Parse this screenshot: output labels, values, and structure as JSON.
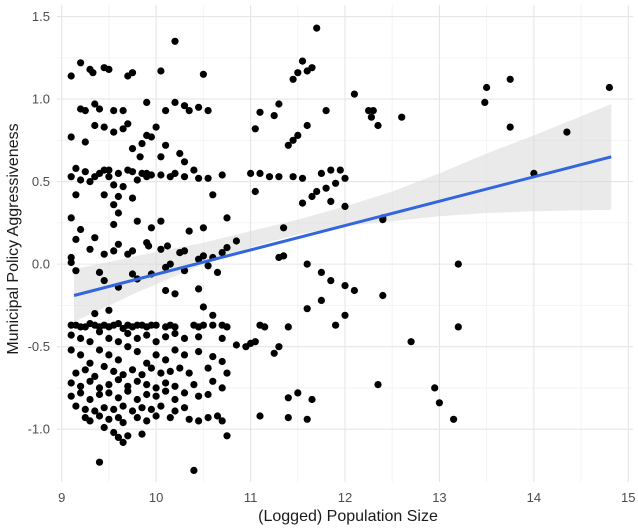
{
  "chart_data": {
    "type": "scatter",
    "title": "",
    "xlabel": "(Logged) Population Size",
    "ylabel": "Municipal Policy Aggressiveness",
    "xlim": [
      8.95,
      15.05
    ],
    "ylim": [
      -1.32,
      1.57
    ],
    "x_ticks": [
      "9",
      "10",
      "11",
      "12",
      "13",
      "14",
      "15"
    ],
    "y_ticks": [
      "-1.0",
      "-0.5",
      "0.0",
      "0.5",
      "1.0",
      "1.5"
    ],
    "grid": true,
    "point_color": "#000000",
    "fit_line": {
      "x": [
        9.13,
        14.82
      ],
      "y": [
        -0.19,
        0.65
      ],
      "color": "#3366dd"
    },
    "confidence_band": {
      "x": [
        9.13,
        9.8,
        10.5,
        11.0,
        11.5,
        12.0,
        12.5,
        13.0,
        13.5,
        14.0,
        14.82
      ],
      "lower": [
        -0.35,
        -0.17,
        0.0,
        0.1,
        0.18,
        0.23,
        0.26,
        0.29,
        0.31,
        0.32,
        0.33
      ],
      "upper": [
        -0.03,
        0.05,
        0.13,
        0.2,
        0.27,
        0.35,
        0.44,
        0.55,
        0.67,
        0.78,
        0.97
      ],
      "color": "#d9d9d9"
    },
    "points": [
      [
        9.1,
        1.14
      ],
      [
        9.2,
        1.22
      ],
      [
        9.3,
        1.18
      ],
      [
        9.33,
        1.16
      ],
      [
        9.45,
        1.19
      ],
      [
        9.5,
        1.18
      ],
      [
        9.7,
        1.14
      ],
      [
        9.75,
        1.16
      ],
      [
        10.2,
        1.35
      ],
      [
        10.05,
        1.17
      ],
      [
        10.5,
        1.15
      ],
      [
        11.7,
        1.43
      ],
      [
        11.55,
        1.23
      ],
      [
        11.5,
        1.16
      ],
      [
        11.6,
        1.17
      ],
      [
        11.65,
        1.19
      ],
      [
        11.45,
        1.12
      ],
      [
        14.8,
        1.07
      ],
      [
        13.5,
        1.07
      ],
      [
        13.75,
        1.12
      ],
      [
        13.48,
        0.98
      ],
      [
        12.1,
        1.03
      ],
      [
        12.25,
        0.93
      ],
      [
        12.3,
        0.93
      ],
      [
        12.28,
        0.89
      ],
      [
        12.6,
        0.89
      ],
      [
        9.2,
        0.94
      ],
      [
        9.25,
        0.93
      ],
      [
        9.35,
        0.97
      ],
      [
        9.4,
        0.94
      ],
      [
        9.55,
        0.93
      ],
      [
        9.65,
        0.93
      ],
      [
        9.7,
        0.85
      ],
      [
        9.9,
        0.98
      ],
      [
        10.0,
        0.83
      ],
      [
        10.1,
        0.93
      ],
      [
        10.2,
        0.98
      ],
      [
        10.3,
        0.96
      ],
      [
        10.35,
        0.93
      ],
      [
        10.45,
        0.95
      ],
      [
        10.55,
        0.93
      ],
      [
        11.3,
        0.97
      ],
      [
        11.1,
        0.92
      ],
      [
        11.25,
        0.9
      ],
      [
        11.6,
        0.84
      ],
      [
        11.05,
        0.82
      ],
      [
        11.4,
        0.72
      ],
      [
        11.45,
        0.75
      ],
      [
        11.5,
        0.78
      ],
      [
        11.8,
        0.93
      ],
      [
        12.35,
        0.84
      ],
      [
        9.1,
        0.77
      ],
      [
        9.25,
        0.74
      ],
      [
        9.35,
        0.84
      ],
      [
        9.45,
        0.83
      ],
      [
        9.55,
        0.8
      ],
      [
        9.65,
        0.82
      ],
      [
        9.75,
        0.7
      ],
      [
        9.85,
        0.73
      ],
      [
        9.9,
        0.78
      ],
      [
        9.95,
        0.77
      ],
      [
        9.83,
        0.65
      ],
      [
        10.05,
        0.65
      ],
      [
        10.1,
        0.72
      ],
      [
        10.25,
        0.67
      ],
      [
        10.3,
        0.62
      ],
      [
        9.15,
        0.58
      ],
      [
        9.25,
        0.56
      ],
      [
        9.35,
        0.53
      ],
      [
        9.45,
        0.57
      ],
      [
        9.5,
        0.57
      ],
      [
        9.6,
        0.55
      ],
      [
        9.7,
        0.57
      ],
      [
        9.75,
        0.56
      ],
      [
        9.85,
        0.55
      ],
      [
        9.9,
        0.55
      ],
      [
        9.95,
        0.54
      ],
      [
        10.05,
        0.54
      ],
      [
        10.15,
        0.53
      ],
      [
        10.2,
        0.55
      ],
      [
        10.3,
        0.53
      ],
      [
        10.4,
        0.57
      ],
      [
        9.1,
        0.53
      ],
      [
        9.2,
        0.51
      ],
      [
        9.3,
        0.5
      ],
      [
        9.4,
        0.55
      ],
      [
        9.5,
        0.53
      ],
      [
        9.55,
        0.48
      ],
      [
        9.65,
        0.47
      ],
      [
        9.8,
        0.51
      ],
      [
        9.9,
        0.53
      ],
      [
        10.45,
        0.52
      ],
      [
        10.55,
        0.52
      ],
      [
        10.7,
        0.54
      ],
      [
        11.0,
        0.55
      ],
      [
        11.1,
        0.55
      ],
      [
        11.2,
        0.53
      ],
      [
        11.3,
        0.53
      ],
      [
        11.45,
        0.53
      ],
      [
        11.55,
        0.52
      ],
      [
        11.75,
        0.55
      ],
      [
        11.85,
        0.57
      ],
      [
        11.95,
        0.57
      ],
      [
        12.0,
        0.52
      ],
      [
        11.9,
        0.49
      ],
      [
        11.8,
        0.46
      ],
      [
        11.7,
        0.44
      ],
      [
        11.65,
        0.41
      ],
      [
        11.55,
        0.37
      ],
      [
        11.85,
        0.38
      ],
      [
        10.6,
        0.42
      ],
      [
        11.05,
        0.44
      ],
      [
        12.0,
        0.35
      ],
      [
        9.45,
        0.42
      ],
      [
        9.6,
        0.41
      ],
      [
        9.75,
        0.4
      ],
      [
        9.15,
        0.42
      ],
      [
        9.1,
        0.28
      ],
      [
        9.2,
        0.21
      ],
      [
        9.35,
        0.16
      ],
      [
        9.55,
        0.24
      ],
      [
        9.6,
        0.31
      ],
      [
        9.55,
        0.36
      ],
      [
        9.8,
        0.26
      ],
      [
        9.95,
        0.22
      ],
      [
        10.05,
        0.26
      ],
      [
        10.35,
        0.2
      ],
      [
        10.5,
        0.22
      ],
      [
        10.75,
        0.28
      ],
      [
        10.85,
        0.14
      ],
      [
        11.35,
        0.22
      ],
      [
        12.4,
        0.27
      ],
      [
        12.4,
        0.28
      ],
      [
        14.0,
        0.55
      ],
      [
        14.35,
        0.8
      ],
      [
        13.75,
        0.83
      ],
      [
        9.15,
        0.15
      ],
      [
        9.3,
        0.09
      ],
      [
        9.45,
        0.06
      ],
      [
        9.55,
        0.08
      ],
      [
        9.6,
        0.12
      ],
      [
        9.7,
        0.06
      ],
      [
        9.75,
        0.08
      ],
      [
        9.9,
        0.13
      ],
      [
        9.92,
        0.11
      ],
      [
        10.05,
        0.09
      ],
      [
        10.12,
        0.11
      ],
      [
        10.25,
        0.07
      ],
      [
        10.3,
        0.08
      ],
      [
        10.5,
        0.05
      ],
      [
        10.6,
        0.04
      ],
      [
        10.7,
        0.07
      ],
      [
        10.75,
        0.1
      ],
      [
        10.1,
        -0.02
      ],
      [
        10.15,
        0.0
      ],
      [
        10.3,
        -0.04
      ],
      [
        10.45,
        0.03
      ],
      [
        10.55,
        -0.01
      ],
      [
        10.65,
        -0.05
      ],
      [
        11.3,
        0.04
      ],
      [
        11.35,
        0.05
      ],
      [
        11.6,
        0.0
      ],
      [
        11.75,
        -0.05
      ],
      [
        11.85,
        -0.1
      ],
      [
        12.0,
        -0.13
      ],
      [
        13.2,
        0.0
      ],
      [
        9.1,
        0.04
      ],
      [
        9.1,
        0.01
      ],
      [
        9.15,
        -0.04
      ],
      [
        9.4,
        -0.05
      ],
      [
        9.45,
        -0.1
      ],
      [
        9.6,
        -0.14
      ],
      [
        9.75,
        -0.06
      ],
      [
        9.8,
        -0.09
      ],
      [
        9.95,
        -0.06
      ],
      [
        10.1,
        -0.16
      ],
      [
        10.2,
        -0.18
      ],
      [
        10.45,
        -0.15
      ],
      [
        10.5,
        -0.26
      ],
      [
        10.6,
        -0.31
      ],
      [
        11.6,
        -0.27
      ],
      [
        11.75,
        -0.22
      ],
      [
        12.1,
        -0.16
      ],
      [
        12.4,
        -0.19
      ],
      [
        9.35,
        -0.3
      ],
      [
        9.5,
        -0.28
      ],
      [
        11.9,
        -0.37
      ],
      [
        12.0,
        -0.31
      ],
      [
        9.1,
        -0.37
      ],
      [
        9.15,
        -0.37
      ],
      [
        9.2,
        -0.38
      ],
      [
        9.25,
        -0.38
      ],
      [
        9.3,
        -0.36
      ],
      [
        9.35,
        -0.37
      ],
      [
        9.4,
        -0.38
      ],
      [
        9.45,
        -0.37
      ],
      [
        9.5,
        -0.38
      ],
      [
        9.55,
        -0.37
      ],
      [
        9.6,
        -0.36
      ],
      [
        9.65,
        -0.39
      ],
      [
        9.7,
        -0.37
      ],
      [
        9.75,
        -0.38
      ],
      [
        9.8,
        -0.37
      ],
      [
        9.85,
        -0.37
      ],
      [
        9.9,
        -0.38
      ],
      [
        9.95,
        -0.37
      ],
      [
        10.0,
        -0.37
      ],
      [
        10.1,
        -0.38
      ],
      [
        10.15,
        -0.37
      ],
      [
        10.2,
        -0.38
      ],
      [
        10.4,
        -0.37
      ],
      [
        10.45,
        -0.38
      ],
      [
        10.5,
        -0.37
      ],
      [
        10.6,
        -0.37
      ],
      [
        10.7,
        -0.37
      ],
      [
        10.75,
        -0.38
      ],
      [
        11.1,
        -0.37
      ],
      [
        11.15,
        -0.38
      ],
      [
        11.4,
        -0.38
      ],
      [
        13.2,
        -0.38
      ],
      [
        9.1,
        -0.43
      ],
      [
        9.2,
        -0.45
      ],
      [
        9.3,
        -0.47
      ],
      [
        9.4,
        -0.41
      ],
      [
        9.5,
        -0.45
      ],
      [
        9.6,
        -0.47
      ],
      [
        9.7,
        -0.42
      ],
      [
        9.8,
        -0.45
      ],
      [
        9.9,
        -0.43
      ],
      [
        10.0,
        -0.47
      ],
      [
        10.1,
        -0.44
      ],
      [
        10.2,
        -0.42
      ],
      [
        10.3,
        -0.45
      ],
      [
        10.45,
        -0.44
      ],
      [
        10.7,
        -0.45
      ],
      [
        11.0,
        -0.48
      ],
      [
        11.05,
        -0.47
      ],
      [
        11.3,
        -0.5
      ],
      [
        12.7,
        -0.47
      ],
      [
        10.85,
        -0.49
      ],
      [
        10.95,
        -0.5
      ],
      [
        11.25,
        -0.54
      ],
      [
        9.1,
        -0.52
      ],
      [
        9.2,
        -0.55
      ],
      [
        9.3,
        -0.6
      ],
      [
        9.4,
        -0.52
      ],
      [
        9.5,
        -0.55
      ],
      [
        9.6,
        -0.58
      ],
      [
        9.7,
        -0.5
      ],
      [
        9.8,
        -0.53
      ],
      [
        9.9,
        -0.6
      ],
      [
        10.0,
        -0.55
      ],
      [
        10.1,
        -0.58
      ],
      [
        10.2,
        -0.52
      ],
      [
        10.3,
        -0.55
      ],
      [
        10.45,
        -0.53
      ],
      [
        10.6,
        -0.56
      ],
      [
        10.7,
        -0.59
      ],
      [
        9.15,
        -0.66
      ],
      [
        9.25,
        -0.64
      ],
      [
        9.35,
        -0.68
      ],
      [
        9.45,
        -0.62
      ],
      [
        9.55,
        -0.65
      ],
      [
        9.65,
        -0.67
      ],
      [
        9.75,
        -0.64
      ],
      [
        9.85,
        -0.67
      ],
      [
        9.95,
        -0.63
      ],
      [
        10.05,
        -0.66
      ],
      [
        10.15,
        -0.65
      ],
      [
        10.25,
        -0.63
      ],
      [
        10.35,
        -0.66
      ],
      [
        10.55,
        -0.63
      ],
      [
        10.75,
        -0.66
      ],
      [
        9.1,
        -0.72
      ],
      [
        9.2,
        -0.74
      ],
      [
        9.3,
        -0.71
      ],
      [
        9.4,
        -0.75
      ],
      [
        9.5,
        -0.73
      ],
      [
        9.6,
        -0.7
      ],
      [
        9.7,
        -0.74
      ],
      [
        9.8,
        -0.71
      ],
      [
        9.9,
        -0.73
      ],
      [
        10.0,
        -0.75
      ],
      [
        10.1,
        -0.72
      ],
      [
        10.2,
        -0.74
      ],
      [
        10.4,
        -0.73
      ],
      [
        10.6,
        -0.71
      ],
      [
        10.7,
        -0.75
      ],
      [
        9.1,
        -0.8
      ],
      [
        9.2,
        -0.78
      ],
      [
        9.3,
        -0.82
      ],
      [
        9.4,
        -0.79
      ],
      [
        9.5,
        -0.78
      ],
      [
        9.6,
        -0.81
      ],
      [
        9.7,
        -0.77
      ],
      [
        9.8,
        -0.82
      ],
      [
        9.9,
        -0.79
      ],
      [
        10.0,
        -0.8
      ],
      [
        10.1,
        -0.77
      ],
      [
        10.2,
        -0.82
      ],
      [
        10.3,
        -0.78
      ],
      [
        10.45,
        -0.8
      ],
      [
        10.55,
        -0.79
      ],
      [
        11.5,
        -0.78
      ],
      [
        11.4,
        -0.81
      ],
      [
        11.65,
        -0.82
      ],
      [
        12.35,
        -0.73
      ],
      [
        12.95,
        -0.75
      ],
      [
        9.15,
        -0.86
      ],
      [
        9.25,
        -0.88
      ],
      [
        9.35,
        -0.89
      ],
      [
        9.45,
        -0.87
      ],
      [
        9.55,
        -0.88
      ],
      [
        9.65,
        -0.86
      ],
      [
        9.75,
        -0.89
      ],
      [
        9.85,
        -0.87
      ],
      [
        9.95,
        -0.88
      ],
      [
        10.05,
        -0.86
      ],
      [
        10.2,
        -0.89
      ],
      [
        10.3,
        -0.87
      ],
      [
        13.0,
        -0.84
      ],
      [
        9.25,
        -0.93
      ],
      [
        9.3,
        -0.95
      ],
      [
        9.4,
        -0.92
      ],
      [
        9.5,
        -0.94
      ],
      [
        9.6,
        -0.93
      ],
      [
        9.65,
        -0.96
      ],
      [
        9.8,
        -0.93
      ],
      [
        9.9,
        -0.95
      ],
      [
        10.0,
        -0.92
      ],
      [
        10.15,
        -0.93
      ],
      [
        10.35,
        -0.94
      ],
      [
        10.45,
        -0.95
      ],
      [
        10.55,
        -0.93
      ],
      [
        10.65,
        -0.92
      ],
      [
        10.7,
        -0.95
      ],
      [
        11.1,
        -0.92
      ],
      [
        11.4,
        -0.93
      ],
      [
        11.6,
        -0.94
      ],
      [
        13.15,
        -0.94
      ],
      [
        9.45,
        -0.99
      ],
      [
        9.55,
        -1.02
      ],
      [
        9.6,
        -1.05
      ],
      [
        9.65,
        -1.08
      ],
      [
        9.7,
        -1.04
      ],
      [
        9.85,
        -1.03
      ],
      [
        10.75,
        -1.04
      ],
      [
        9.4,
        -1.2
      ],
      [
        10.4,
        -1.25
      ]
    ]
  }
}
